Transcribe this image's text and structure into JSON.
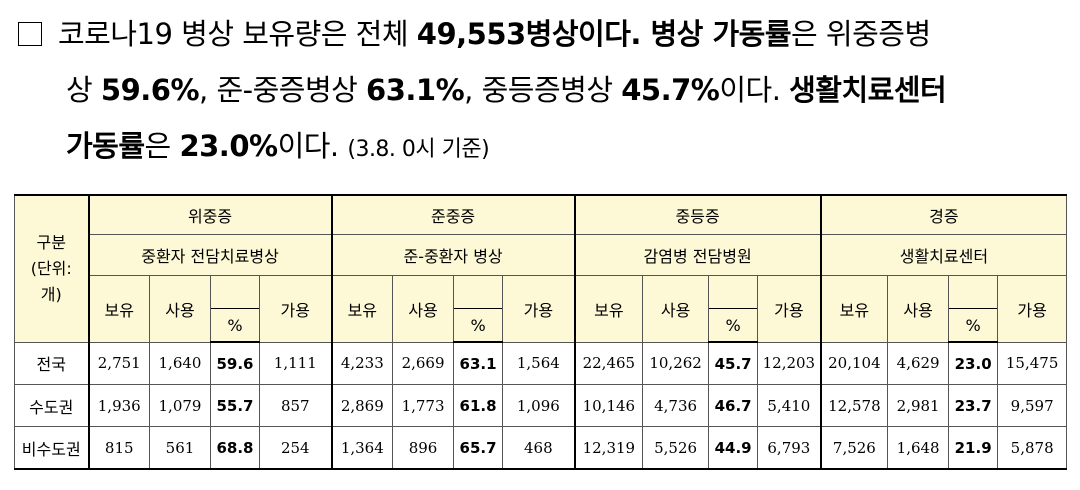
{
  "summary": {
    "line1_pre": "코로나19 병상 보유량은 전체 ",
    "line1_bold": "49,553병상이다. 병상 가동률",
    "line1_post": "은 위중증병",
    "line2_pre": "상 ",
    "line2_b1": "59.6%",
    "line2_mid1": ", 준-중증병상 ",
    "line2_b2": "63.1%",
    "line2_mid2": ", 중등증병상 ",
    "line2_b3": "45.7%",
    "line2_mid3": "이다. ",
    "line2_b4": "생활치료센터",
    "line3_b1": "가동률",
    "line3_mid1": "은 ",
    "line3_b2": "23.0%",
    "line3_mid2": "이다. ",
    "line3_note": "(3.8. 0시 기준)"
  },
  "table": {
    "row_header": "구분\n(단위:\n개)",
    "groups": [
      {
        "name": "위중증",
        "sub": "중환자 전담치료병상"
      },
      {
        "name": "준중증",
        "sub": "준-중환자 병상"
      },
      {
        "name": "중등증",
        "sub": "감염병 전담병원"
      },
      {
        "name": "경증",
        "sub": "생활치료센터"
      }
    ],
    "col_labels": {
      "own": "보유",
      "used": "사용",
      "pct": "%",
      "avail": "가용"
    },
    "rows": [
      {
        "region": "전국",
        "values": [
          [
            "2,751",
            "1,640",
            "59.6",
            "1,111"
          ],
          [
            "4,233",
            "2,669",
            "63.1",
            "1,564"
          ],
          [
            "22,465",
            "10,262",
            "45.7",
            "12,203"
          ],
          [
            "20,104",
            "4,629",
            "23.0",
            "15,475"
          ]
        ]
      },
      {
        "region": "수도권",
        "values": [
          [
            "1,936",
            "1,079",
            "55.7",
            "857"
          ],
          [
            "2,869",
            "1,773",
            "61.8",
            "1,096"
          ],
          [
            "10,146",
            "4,736",
            "46.7",
            "5,410"
          ],
          [
            "12,578",
            "2,981",
            "23.7",
            "9,597"
          ]
        ]
      },
      {
        "region": "비수도권",
        "values": [
          [
            "815",
            "561",
            "68.8",
            "254"
          ],
          [
            "1,364",
            "896",
            "65.7",
            "468"
          ],
          [
            "12,319",
            "5,526",
            "44.9",
            "6,793"
          ],
          [
            "7,526",
            "1,648",
            "21.9",
            "5,878"
          ]
        ]
      }
    ]
  }
}
